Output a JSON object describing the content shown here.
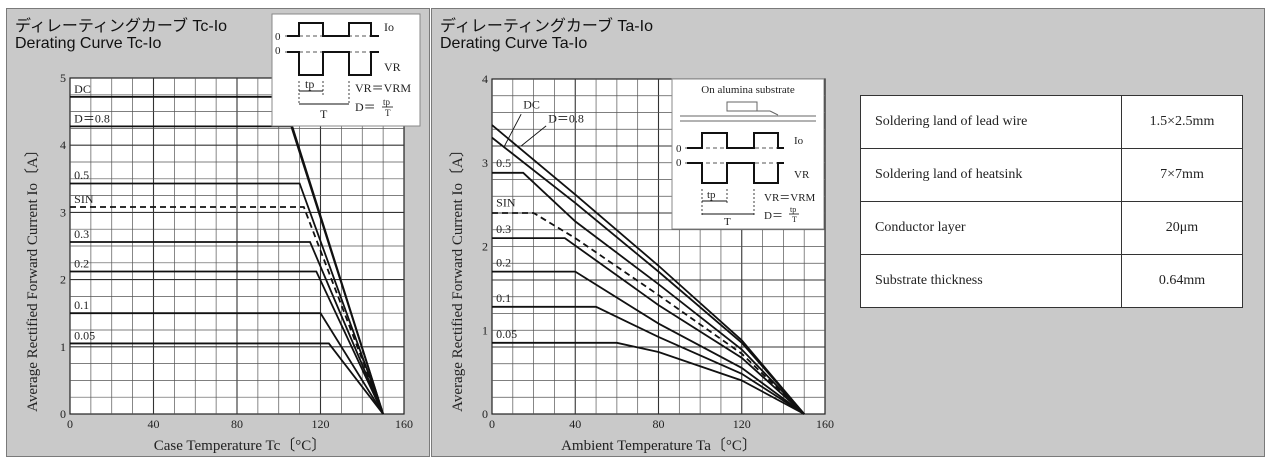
{
  "charts_text": {
    "left": {
      "title_jp": "ディレーティングカーブ Tc-Io",
      "title_en": "Derating Curve Tc-Io",
      "ylabel": "Average Rectified Forward Current   Io〔A〕",
      "xlabel": "Case Temperature   Tc〔°C〕",
      "inset": {
        "io": "Io",
        "vr": "VR",
        "zero1": "0",
        "zero2": "0",
        "tp": "tp",
        "t": "T",
        "vr_eq": "VR＝VRM",
        "d_eq": "D＝",
        "d_num": "tp",
        "d_den": "T"
      }
    },
    "right": {
      "title_jp": "ディレーティングカーブ Ta-Io",
      "title_en": "Derating Curve Ta-Io",
      "ylabel": "Average Rectified Forward Current   Io〔A〕",
      "xlabel": "Ambient Temperature   Ta〔°C〕",
      "inset": {
        "header": "On alumina substrate",
        "io": "Io",
        "vr": "VR",
        "zero1": "0",
        "zero2": "0",
        "tp": "tp",
        "t": "T",
        "vr_eq": "VR＝VRM",
        "d_eq": "D＝",
        "d_num": "tp",
        "d_den": "T"
      }
    }
  },
  "table": {
    "rows": [
      {
        "label": "Soldering land of lead wire",
        "value": "1.5×2.5mm"
      },
      {
        "label": "Soldering land of heatsink",
        "value": "7×7mm"
      },
      {
        "label": "Conductor layer",
        "value": "20μm"
      },
      {
        "label": "Substrate thickness",
        "value": "0.64mm"
      }
    ]
  },
  "chart_data": [
    {
      "type": "line",
      "title": "Derating Curve Tc-Io",
      "xlabel": "Case Temperature Tc〔°C〕",
      "ylabel": "Average Rectified Forward Current Io〔A〕",
      "xlim": [
        0,
        160
      ],
      "ylim": [
        0,
        5
      ],
      "xticks": [
        "0",
        "40",
        "80",
        "120",
        "160"
      ],
      "yticks": [
        "0",
        "1",
        "2",
        "3",
        "4",
        "5"
      ],
      "grid": true,
      "series": [
        {
          "name": "DC",
          "x": [
            0,
            102,
            150
          ],
          "y": [
            4.72,
            4.72,
            0
          ]
        },
        {
          "name": "D＝0.8",
          "x": [
            0,
            106,
            150
          ],
          "y": [
            4.28,
            4.28,
            0
          ]
        },
        {
          "name": "0.5",
          "x": [
            0,
            110,
            150
          ],
          "y": [
            3.43,
            3.43,
            0
          ]
        },
        {
          "name": "SIN",
          "dashed": true,
          "x": [
            0,
            112,
            150
          ],
          "y": [
            3.08,
            3.08,
            0
          ]
        },
        {
          "name": "0.3",
          "x": [
            0,
            115,
            150
          ],
          "y": [
            2.56,
            2.56,
            0
          ]
        },
        {
          "name": "0.2",
          "x": [
            0,
            118,
            150
          ],
          "y": [
            2.12,
            2.12,
            0
          ]
        },
        {
          "name": "0.1",
          "x": [
            0,
            120,
            150
          ],
          "y": [
            1.5,
            1.5,
            0
          ]
        },
        {
          "name": "0.05",
          "x": [
            0,
            124,
            150
          ],
          "y": [
            1.05,
            1.05,
            0
          ]
        }
      ]
    },
    {
      "type": "line",
      "title": "Derating Curve Ta-Io",
      "xlabel": "Ambient Temperature Ta〔°C〕",
      "ylabel": "Average Rectified Forward Current Io〔A〕",
      "xlim": [
        0,
        160
      ],
      "ylim": [
        0,
        4
      ],
      "xticks": [
        "0",
        "40",
        "80",
        "120",
        "160"
      ],
      "yticks": [
        "0",
        "1",
        "2",
        "3",
        "4"
      ],
      "grid": true,
      "series": [
        {
          "name": "DC",
          "x": [
            0,
            40,
            80,
            120,
            150
          ],
          "y": [
            3.45,
            2.62,
            1.77,
            0.88,
            0
          ]
        },
        {
          "name": "D＝0.8",
          "x": [
            0,
            40,
            80,
            120,
            150
          ],
          "y": [
            3.3,
            2.52,
            1.7,
            0.85,
            0
          ]
        },
        {
          "name": "0.5",
          "x": [
            0,
            15,
            40,
            80,
            120,
            150
          ],
          "y": [
            2.88,
            2.88,
            2.3,
            1.55,
            0.77,
            0
          ]
        },
        {
          "name": "SIN",
          "dashed": true,
          "x": [
            0,
            20,
            40,
            80,
            120,
            150
          ],
          "y": [
            2.4,
            2.4,
            2.1,
            1.42,
            0.72,
            0
          ]
        },
        {
          "name": "0.3",
          "x": [
            0,
            35,
            80,
            120,
            150
          ],
          "y": [
            2.1,
            2.1,
            1.3,
            0.67,
            0
          ]
        },
        {
          "name": "0.2",
          "x": [
            0,
            40,
            80,
            120,
            150
          ],
          "y": [
            1.7,
            1.7,
            1.08,
            0.55,
            0
          ]
        },
        {
          "name": "0.1",
          "x": [
            0,
            50,
            80,
            120,
            150
          ],
          "y": [
            1.28,
            1.28,
            0.92,
            0.48,
            0
          ]
        },
        {
          "name": "0.05",
          "x": [
            0,
            60,
            80,
            120,
            150
          ],
          "y": [
            0.85,
            0.85,
            0.74,
            0.4,
            0
          ]
        }
      ]
    }
  ]
}
